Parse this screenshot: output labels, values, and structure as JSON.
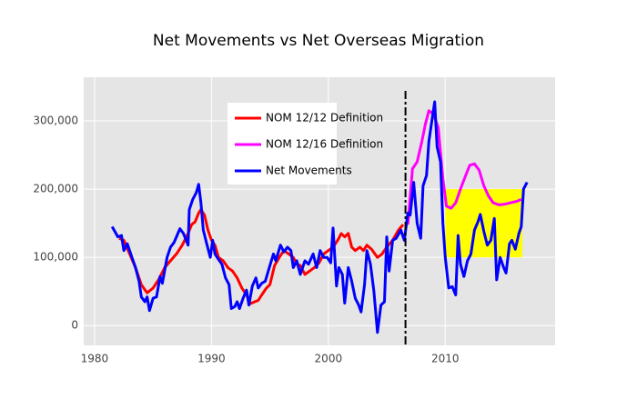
{
  "chart_data": {
    "type": "line",
    "title": "Net Movements vs Net Overseas Migration",
    "xlim": [
      1979.07,
      2019.4
    ],
    "xticks": [
      1980,
      1990,
      2000,
      2010
    ],
    "ylim": [
      -29000,
      364000
    ],
    "yticks": [
      0,
      {
        "value": 100000,
        "label": "100,000"
      },
      {
        "value": 200000,
        "label": "200,000"
      },
      {
        "value": 300000,
        "label": "300,000"
      }
    ],
    "grid": true,
    "legend": "top-center",
    "vline": 2006.6,
    "rect": {
      "x": [
        2010,
        2016.6
      ],
      "y": [
        100000,
        200000
      ],
      "color": "#ffff00"
    },
    "series": [
      {
        "name": "NOM 12/12 Definition",
        "color": "#ff0000",
        "x": [
          1982.1,
          1982.5,
          1983,
          1983.5,
          1984,
          1984.5,
          1985,
          1985.5,
          1986,
          1986.5,
          1987,
          1987.5,
          1988,
          1988.3,
          1988.6,
          1988.9,
          1989.1,
          1989.4,
          1989.7,
          1990,
          1990.3,
          1990.6,
          1991,
          1991.4,
          1991.8,
          1992.2,
          1992.6,
          1993,
          1993.3,
          1993.7,
          1994,
          1994.3,
          1994.7,
          1995,
          1995.4,
          1995.8,
          1996.2,
          1996.6,
          1997,
          1997.3,
          1997.6,
          1998,
          1998.4,
          1998.8,
          1999.2,
          1999.6,
          2000,
          2000.4,
          2000.8,
          2001.1,
          2001.4,
          2001.7,
          2002,
          2002.3,
          2002.7,
          2003,
          2003.3,
          2003.7,
          2004.2,
          2004.6,
          2005,
          2005.5,
          2006,
          2006.4
        ],
        "values": [
          128000,
          125000,
          105000,
          85000,
          60000,
          48000,
          55000,
          68000,
          85000,
          95000,
          105000,
          118000,
          135000,
          148000,
          152000,
          165000,
          170000,
          162000,
          140000,
          125000,
          118000,
          100000,
          95000,
          85000,
          80000,
          70000,
          55000,
          45000,
          32000,
          35000,
          37000,
          45000,
          55000,
          60000,
          88000,
          100000,
          110000,
          105000,
          100000,
          90000,
          88000,
          75000,
          80000,
          85000,
          92000,
          105000,
          110000,
          115000,
          125000,
          135000,
          130000,
          135000,
          115000,
          110000,
          115000,
          110000,
          118000,
          112000,
          100000,
          105000,
          115000,
          125000,
          140000,
          148000
        ]
      },
      {
        "name": "NOM 12/16 Definition",
        "color": "#ff00ff",
        "x": [
          2006.8,
          2007.2,
          2007.6,
          2008,
          2008.3,
          2008.6,
          2009,
          2009.4,
          2009.8,
          2010.1,
          2010.5,
          2010.9,
          2011.3,
          2011.7,
          2012.1,
          2012.5,
          2012.9,
          2013.3,
          2013.7,
          2014.1,
          2014.6,
          2015.1,
          2015.6,
          2016.1,
          2016.5
        ],
        "values": [
          148000,
          230000,
          240000,
          270000,
          295000,
          315000,
          310000,
          290000,
          215000,
          175000,
          172000,
          180000,
          200000,
          218000,
          235000,
          237000,
          228000,
          205000,
          190000,
          180000,
          177000,
          178000,
          180000,
          182000,
          185000
        ]
      },
      {
        "name": "Net Movements",
        "color": "#0000ff",
        "x": [
          1981.5,
          1982,
          1982.3,
          1982.5,
          1982.8,
          1983.2,
          1983.5,
          1983.8,
          1984,
          1984.3,
          1984.5,
          1984.7,
          1985,
          1985.3,
          1985.6,
          1985.8,
          1986.2,
          1986.5,
          1986.8,
          1987,
          1987.3,
          1987.6,
          1988,
          1988.1,
          1988.4,
          1988.7,
          1988.9,
          1989.1,
          1989.3,
          1989.6,
          1989.9,
          1990.1,
          1990.3,
          1990.6,
          1990.9,
          1991.2,
          1991.5,
          1991.7,
          1992,
          1992.2,
          1992.4,
          1992.7,
          1993,
          1993.2,
          1993.5,
          1993.8,
          1994,
          1994.3,
          1994.6,
          1995,
          1995.3,
          1995.5,
          1995.9,
          1996.2,
          1996.5,
          1996.8,
          1997,
          1997.3,
          1997.6,
          1998,
          1998.3,
          1998.7,
          1999,
          1999.3,
          1999.6,
          1999.9,
          2000.2,
          2000.4,
          2000.7,
          2000.9,
          2001.2,
          2001.4,
          2001.7,
          2002,
          2002.3,
          2002.6,
          2002.8,
          2003.1,
          2003.3,
          2003.6,
          2003.9,
          2004.2,
          2004.5,
          2004.8,
          2005,
          2005.2,
          2005.5,
          2005.8,
          2006.2,
          2006.5,
          2006.8,
          2007,
          2007.3,
          2007.6,
          2007.9,
          2008.1,
          2008.4,
          2008.6,
          2008.9,
          2009.1,
          2009.3,
          2009.6,
          2009.8,
          2010,
          2010.3,
          2010.6,
          2010.9,
          2011.1,
          2011.3,
          2011.6,
          2011.9,
          2012.2,
          2012.5,
          2012.8,
          2013,
          2013.3,
          2013.6,
          2013.9,
          2014.2,
          2014.4,
          2014.7,
          2015,
          2015.2,
          2015.5,
          2015.7,
          2016,
          2016.3,
          2016.5,
          2016.7,
          2017
        ],
        "values": [
          145000,
          130000,
          132000,
          110000,
          120000,
          100000,
          85000,
          65000,
          42000,
          35000,
          42000,
          22000,
          40000,
          42000,
          72000,
          62000,
          100000,
          115000,
          122000,
          130000,
          142000,
          135000,
          118000,
          170000,
          185000,
          195000,
          207000,
          180000,
          140000,
          120000,
          100000,
          125000,
          105000,
          97000,
          90000,
          70000,
          60000,
          25000,
          28000,
          35000,
          25000,
          40000,
          52000,
          30000,
          58000,
          70000,
          55000,
          62000,
          65000,
          88000,
          105000,
          95000,
          118000,
          108000,
          115000,
          110000,
          85000,
          95000,
          75000,
          95000,
          90000,
          105000,
          85000,
          110000,
          100000,
          100000,
          92000,
          143000,
          58000,
          85000,
          75000,
          33000,
          85000,
          65000,
          40000,
          30000,
          20000,
          60000,
          110000,
          90000,
          50000,
          -10000,
          30000,
          35000,
          130000,
          80000,
          125000,
          128000,
          140000,
          125000,
          165000,
          162000,
          210000,
          150000,
          128000,
          205000,
          220000,
          270000,
          305000,
          328000,
          262000,
          240000,
          150000,
          100000,
          55000,
          57000,
          45000,
          132000,
          90000,
          72000,
          95000,
          105000,
          140000,
          152000,
          163000,
          138000,
          118000,
          125000,
          157000,
          67000,
          100000,
          85000,
          77000,
          120000,
          125000,
          112000,
          135000,
          145000,
          200000,
          210000
        ]
      }
    ]
  }
}
